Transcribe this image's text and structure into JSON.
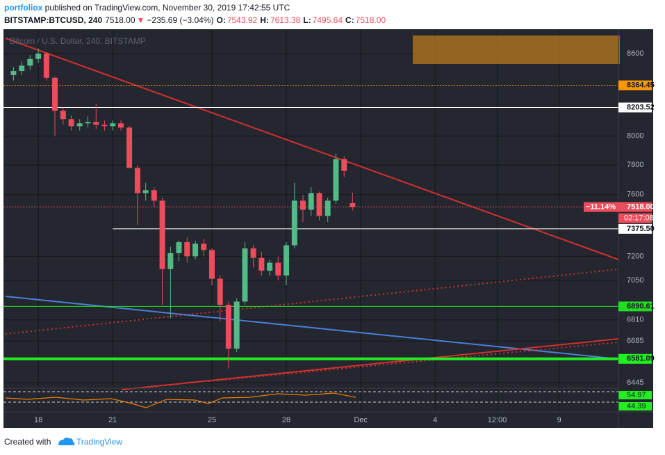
{
  "header": {
    "author": "portfoliox",
    "published": " published on TradingView.com, November 30, 2019 17:42:55 UTC",
    "symbol": "BITSTAMP:BTCUSD, 240",
    "last": "7518.00",
    "arrow": "▼",
    "change": "−235.69 (−3.04%)",
    "o_label": "O:",
    "o": "7543.92",
    "h_label": "H:",
    "h": "7613.38",
    "l_label": "L:",
    "l": "7495.64",
    "c_label": "C:",
    "c": "7518.00"
  },
  "footer": {
    "created": "Created with",
    "brand": "TradingView"
  },
  "chart_data": {
    "type": "candlestick",
    "legend": "Bitcoin / U.S. Dollar, 240, BITSTAMP",
    "log_scale": true,
    "grid": true,
    "up_color": "#53b987",
    "down_color": "#eb4d5c",
    "x": [
      17.0,
      17.33,
      17.67,
      18.0,
      18.33,
      18.67,
      19.0,
      19.33,
      19.67,
      20.0,
      20.33,
      20.67,
      21.0,
      21.33,
      21.67,
      22.0,
      22.33,
      22.67,
      23.0,
      23.33,
      23.67,
      24.0,
      24.33,
      24.67,
      25.0,
      25.33,
      25.67,
      26.0,
      26.33,
      26.67,
      27.0,
      27.33,
      27.67,
      28.0,
      28.33,
      28.67,
      29.0,
      29.33,
      29.67,
      30.0,
      30.33,
      30.67
    ],
    "open": [
      8440,
      8470,
      8510,
      8560,
      8600,
      8420,
      8180,
      8120,
      8070,
      8090,
      8100,
      8080,
      8070,
      8090,
      8060,
      7780,
      7610,
      7630,
      7560,
      7120,
      7220,
      7290,
      7200,
      7280,
      7240,
      7060,
      6900,
      6640,
      6920,
      7250,
      7190,
      7110,
      7160,
      7080,
      7270,
      7560,
      7500,
      7610,
      7460,
      7560,
      7840,
      7543.92
    ],
    "high": [
      8500,
      8540,
      8590,
      8640,
      8610,
      8430,
      8200,
      8150,
      8120,
      8140,
      8230,
      8110,
      8110,
      8110,
      8070,
      7800,
      7680,
      7650,
      7580,
      7260,
      7300,
      7320,
      7300,
      7310,
      7250,
      7080,
      6920,
      6940,
      7290,
      7270,
      7230,
      7180,
      7200,
      7290,
      7680,
      7600,
      7650,
      7620,
      7580,
      7880,
      7860,
      7613.38
    ],
    "low": [
      8400,
      8440,
      8480,
      8530,
      8400,
      8000,
      8080,
      8040,
      8040,
      8060,
      8050,
      8040,
      8040,
      8040,
      7780,
      7400,
      7560,
      7520,
      6900,
      6820,
      7170,
      7160,
      7180,
      7200,
      7020,
      6800,
      6526,
      6620,
      6900,
      7130,
      7080,
      7080,
      7050,
      7020,
      7250,
      7420,
      7460,
      7430,
      7420,
      7540,
      7720,
      7495.64
    ],
    "close": [
      8470,
      8510,
      8560,
      8600,
      8420,
      8180,
      8120,
      8070,
      8090,
      8100,
      8080,
      8070,
      8090,
      8060,
      7780,
      7610,
      7630,
      7560,
      7120,
      7220,
      7290,
      7200,
      7280,
      7240,
      7060,
      6900,
      6640,
      6920,
      7250,
      7190,
      7110,
      7160,
      7080,
      7270,
      7560,
      7500,
      7610,
      7460,
      7560,
      7840,
      7760,
      7518
    ],
    "xlim": [
      16.68,
      41.39
    ],
    "xticks": [
      18,
      21,
      25,
      28,
      {
        "value": 31,
        "label": "Dec"
      },
      {
        "value": 34,
        "label": "4"
      },
      {
        "value": 36.5,
        "label": "12:00"
      },
      {
        "value": 39,
        "label": "9"
      }
    ],
    "ylim": [
      6406,
      8770
    ],
    "yticks": [
      8600,
      8000,
      7800,
      7600,
      7200,
      7050,
      6810,
      6685,
      6445
    ],
    "price_lines": [
      {
        "value": 8364.45,
        "color": "#ff9800",
        "dash": true
      },
      {
        "value": 8203.52,
        "color": "#ffffff"
      },
      {
        "value": 7518,
        "label": "7518.00",
        "color": "#eb4d5c",
        "dash": true
      },
      {
        "value": 7375.5,
        "label": "7375.50",
        "color": "#ffffff",
        "x_start": 21.0
      },
      {
        "value": 6890.61,
        "color": "#22dd22"
      },
      {
        "value": 6581.09,
        "color": "#22ee22",
        "thick": true
      }
    ],
    "current_change": "−11.14%",
    "countdown": "02:17:08",
    "indicator_labels": [
      "54.97",
      "44.39"
    ]
  }
}
